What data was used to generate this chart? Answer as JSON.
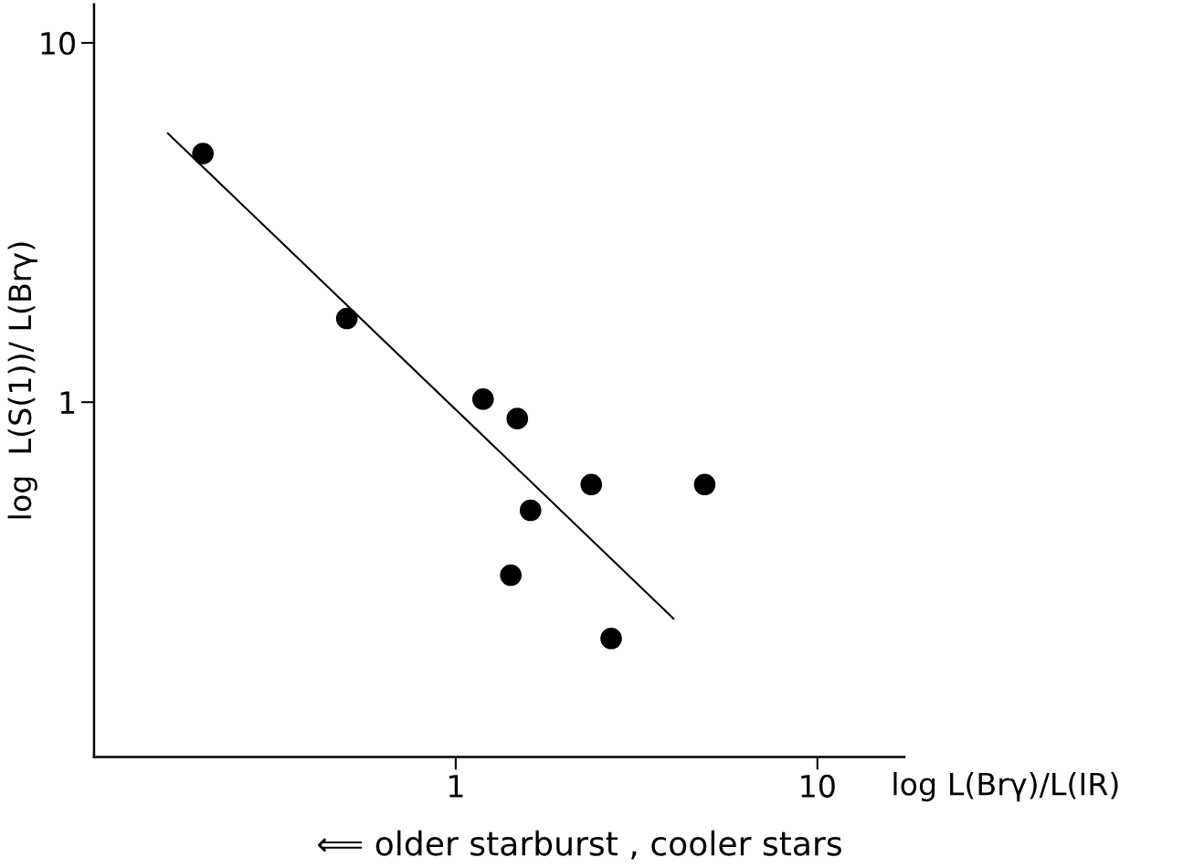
{
  "chart_data": {
    "type": "scatter",
    "xlabel": "log L(Brγ)/L(IR)",
    "ylabel": "log  L(S(1))/ L(Brγ)",
    "annotations": [
      "⟸ older starburst , cooler stars"
    ],
    "log": "xy",
    "xlim": [
      0.1,
      17.4
    ],
    "ylim": [
      0.103,
      12.8
    ],
    "xticks": [
      1,
      10
    ],
    "yticks": [
      1,
      10
    ],
    "grid": false,
    "series": [
      {
        "color": "#000000",
        "marker": "circle",
        "x": [
          0.2,
          0.5,
          1.19,
          1.48,
          2.37,
          4.88,
          1.61,
          1.42,
          2.69
        ],
        "values": [
          4.92,
          1.71,
          1.02,
          0.9,
          0.59,
          0.59,
          0.5,
          0.33,
          0.22
        ]
      },
      {
        "type": "line",
        "color": "#000000",
        "marker": "none",
        "x": [
          0.16,
          4.0
        ],
        "values": [
          5.6,
          0.25
        ],
        "line_style": "solid"
      }
    ]
  }
}
